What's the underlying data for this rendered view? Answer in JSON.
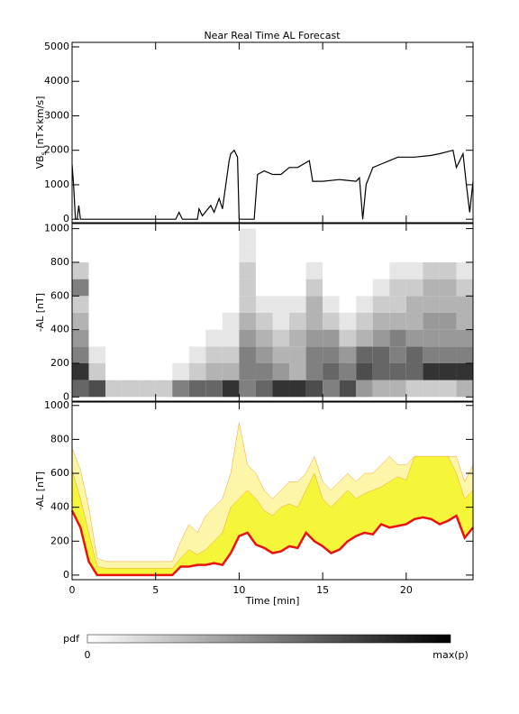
{
  "chart_data": [
    {
      "type": "line",
      "title": "Near Real Time AL Forecast",
      "ylabel": [
        "VB",
        "s",
        " [nT×km/s]"
      ],
      "xlim": [
        0,
        24
      ],
      "xticks": [
        0,
        5,
        10,
        15,
        20
      ],
      "ylim": [
        -100,
        5130
      ],
      "yticks": [
        0,
        1000,
        2000,
        3000,
        4000,
        5000
      ],
      "color": "#000000",
      "x": [
        0,
        0.1,
        0.2,
        0.3,
        0.4,
        0.5,
        6.2,
        6.4,
        6.6,
        7.5,
        7.6,
        7.8,
        8.3,
        8.5,
        8.8,
        9.0,
        9.2,
        9.4,
        9.5,
        9.7,
        9.9,
        10.0,
        10.9,
        11.1,
        11.5,
        12.0,
        12.5,
        13.0,
        13.5,
        14.2,
        14.4,
        15.0,
        16.0,
        17.0,
        17.2,
        17.4,
        17.6,
        18.0,
        18.5,
        19.0,
        19.5,
        20.5,
        21.5,
        22.0,
        22.8,
        23.0,
        23.4,
        23.6,
        23.8,
        24.0
      ],
      "values": [
        1600,
        900,
        0,
        0,
        400,
        0,
        0,
        200,
        0,
        0,
        300,
        100,
        400,
        200,
        600,
        300,
        1000,
        1700,
        1900,
        2000,
        1800,
        0,
        0,
        1300,
        1400,
        1300,
        1300,
        1500,
        1500,
        1700,
        1100,
        1100,
        1150,
        1100,
        1200,
        0,
        1000,
        1500,
        1600,
        1700,
        1800,
        1800,
        1850,
        1900,
        2000,
        1500,
        1900,
        1000,
        200,
        1100
      ]
    },
    {
      "type": "heatmap",
      "ylabel": "-AL [nT]",
      "xlim": [
        0,
        24
      ],
      "xticks": [
        0,
        5,
        10,
        15,
        20
      ],
      "ylim": [
        -25,
        1030
      ],
      "yticks": [
        0,
        200,
        400,
        600,
        800,
        1000
      ],
      "x_bins": [
        0,
        1,
        2,
        3,
        4,
        5,
        6,
        7,
        8,
        9,
        10,
        11,
        12,
        13,
        14,
        15,
        16,
        17,
        18,
        19,
        20,
        21,
        22,
        23,
        24
      ],
      "y_bins": [
        0,
        100,
        200,
        300,
        400,
        500,
        600,
        700,
        800,
        900,
        1000
      ],
      "pdf_columns": [
        [
          0.6,
          0.8,
          0.5,
          0.4,
          0.3,
          0.2,
          0.5,
          0.2,
          0,
          0
        ],
        [
          0.7,
          0.2,
          0.1,
          0,
          0,
          0,
          0,
          0,
          0,
          0
        ],
        [
          0.2,
          0,
          0,
          0,
          0,
          0,
          0,
          0,
          0,
          0
        ],
        [
          0.2,
          0,
          0,
          0,
          0,
          0,
          0,
          0,
          0,
          0
        ],
        [
          0.2,
          0,
          0,
          0,
          0,
          0,
          0,
          0,
          0,
          0
        ],
        [
          0.2,
          0,
          0,
          0,
          0,
          0,
          0,
          0,
          0,
          0
        ],
        [
          0.5,
          0.1,
          0,
          0,
          0,
          0,
          0,
          0,
          0,
          0
        ],
        [
          0.6,
          0.2,
          0.1,
          0,
          0,
          0,
          0,
          0,
          0,
          0
        ],
        [
          0.6,
          0.3,
          0.2,
          0.1,
          0,
          0,
          0,
          0,
          0,
          0
        ],
        [
          0.8,
          0.3,
          0.2,
          0.1,
          0.1,
          0,
          0,
          0,
          0,
          0
        ],
        [
          0.5,
          0.5,
          0.5,
          0.4,
          0.3,
          0.2,
          0.2,
          0.2,
          0.1,
          0.1
        ],
        [
          0.6,
          0.5,
          0.4,
          0.3,
          0.2,
          0.1,
          0,
          0,
          0,
          0
        ],
        [
          0.8,
          0.4,
          0.3,
          0.2,
          0.1,
          0.1,
          0,
          0,
          0,
          0
        ],
        [
          0.8,
          0.3,
          0.3,
          0.3,
          0.2,
          0.1,
          0,
          0,
          0,
          0
        ],
        [
          0.7,
          0.5,
          0.5,
          0.4,
          0.3,
          0.3,
          0.2,
          0.1,
          0,
          0
        ],
        [
          0.5,
          0.6,
          0.5,
          0.4,
          0.2,
          0.1,
          0,
          0,
          0,
          0
        ],
        [
          0.7,
          0.5,
          0.4,
          0.2,
          0.1,
          0,
          0,
          0,
          0,
          0
        ],
        [
          0.4,
          0.7,
          0.6,
          0.3,
          0.2,
          0.1,
          0,
          0,
          0,
          0
        ],
        [
          0.3,
          0.6,
          0.6,
          0.4,
          0.3,
          0.2,
          0.1,
          0,
          0,
          0
        ],
        [
          0.3,
          0.6,
          0.5,
          0.5,
          0.3,
          0.2,
          0.2,
          0.1,
          0,
          0
        ],
        [
          0.2,
          0.6,
          0.6,
          0.4,
          0.3,
          0.3,
          0.2,
          0.1,
          0,
          0
        ],
        [
          0.2,
          0.8,
          0.5,
          0.4,
          0.4,
          0.3,
          0.3,
          0.2,
          0,
          0
        ],
        [
          0.2,
          0.8,
          0.5,
          0.4,
          0.4,
          0.3,
          0.3,
          0.2,
          0,
          0
        ],
        [
          0.3,
          0.8,
          0.5,
          0.4,
          0.3,
          0.3,
          0.2,
          0.1,
          0,
          0
        ]
      ]
    },
    {
      "type": "band",
      "ylabel": "-AL [nT]",
      "xlabel": "Time [min]",
      "xlim": [
        0,
        24
      ],
      "xticks": [
        0,
        5,
        10,
        15,
        20
      ],
      "ylim": [
        -27,
        1020
      ],
      "yticks": [
        0,
        200,
        400,
        600,
        800,
        1000
      ],
      "x": [
        0,
        0.5,
        1,
        1.5,
        2,
        2.5,
        3,
        3.5,
        4,
        4.5,
        5,
        5.5,
        6,
        6.5,
        7,
        7.5,
        8,
        8.5,
        9,
        9.5,
        10,
        10.5,
        11,
        11.5,
        12,
        12.5,
        13,
        13.5,
        14,
        14.5,
        15,
        15.5,
        16,
        16.5,
        17,
        17.5,
        18,
        18.5,
        19,
        19.5,
        20,
        20.5,
        21,
        21.5,
        22,
        22.5,
        23,
        23.5,
        24
      ],
      "median": {
        "color": "#e8140c",
        "values": [
          380,
          280,
          80,
          0,
          0,
          0,
          0,
          0,
          0,
          0,
          0,
          0,
          0,
          50,
          50,
          60,
          60,
          70,
          60,
          130,
          230,
          250,
          180,
          160,
          130,
          140,
          170,
          160,
          250,
          200,
          170,
          130,
          150,
          200,
          230,
          250,
          240,
          300,
          280,
          290,
          300,
          330,
          340,
          330,
          300,
          320,
          350,
          220,
          280
        ]
      },
      "band_outer": {
        "color": "#fdf6a8",
        "upper": [
          750,
          620,
          400,
          100,
          80,
          80,
          80,
          80,
          80,
          80,
          80,
          80,
          80,
          200,
          300,
          250,
          350,
          400,
          450,
          600,
          900,
          650,
          600,
          500,
          450,
          500,
          550,
          550,
          600,
          700,
          550,
          500,
          550,
          600,
          550,
          600,
          600,
          650,
          700,
          650,
          650,
          700,
          700,
          700,
          700,
          700,
          700,
          550,
          650
        ]
      },
      "band_inner": {
        "color": "#f5f53a",
        "upper": [
          620,
          450,
          250,
          50,
          40,
          40,
          40,
          40,
          40,
          40,
          40,
          40,
          40,
          100,
          150,
          120,
          150,
          200,
          250,
          400,
          450,
          500,
          450,
          380,
          350,
          400,
          420,
          400,
          500,
          600,
          450,
          400,
          450,
          500,
          450,
          480,
          500,
          520,
          550,
          580,
          560,
          700,
          700,
          700,
          700,
          700,
          600,
          450,
          500
        ]
      }
    },
    {
      "type": "colorbar",
      "label": "pdf",
      "min_label": "0",
      "max_label": "max(p)",
      "colors": [
        "#ffffff",
        "#000000"
      ]
    }
  ]
}
